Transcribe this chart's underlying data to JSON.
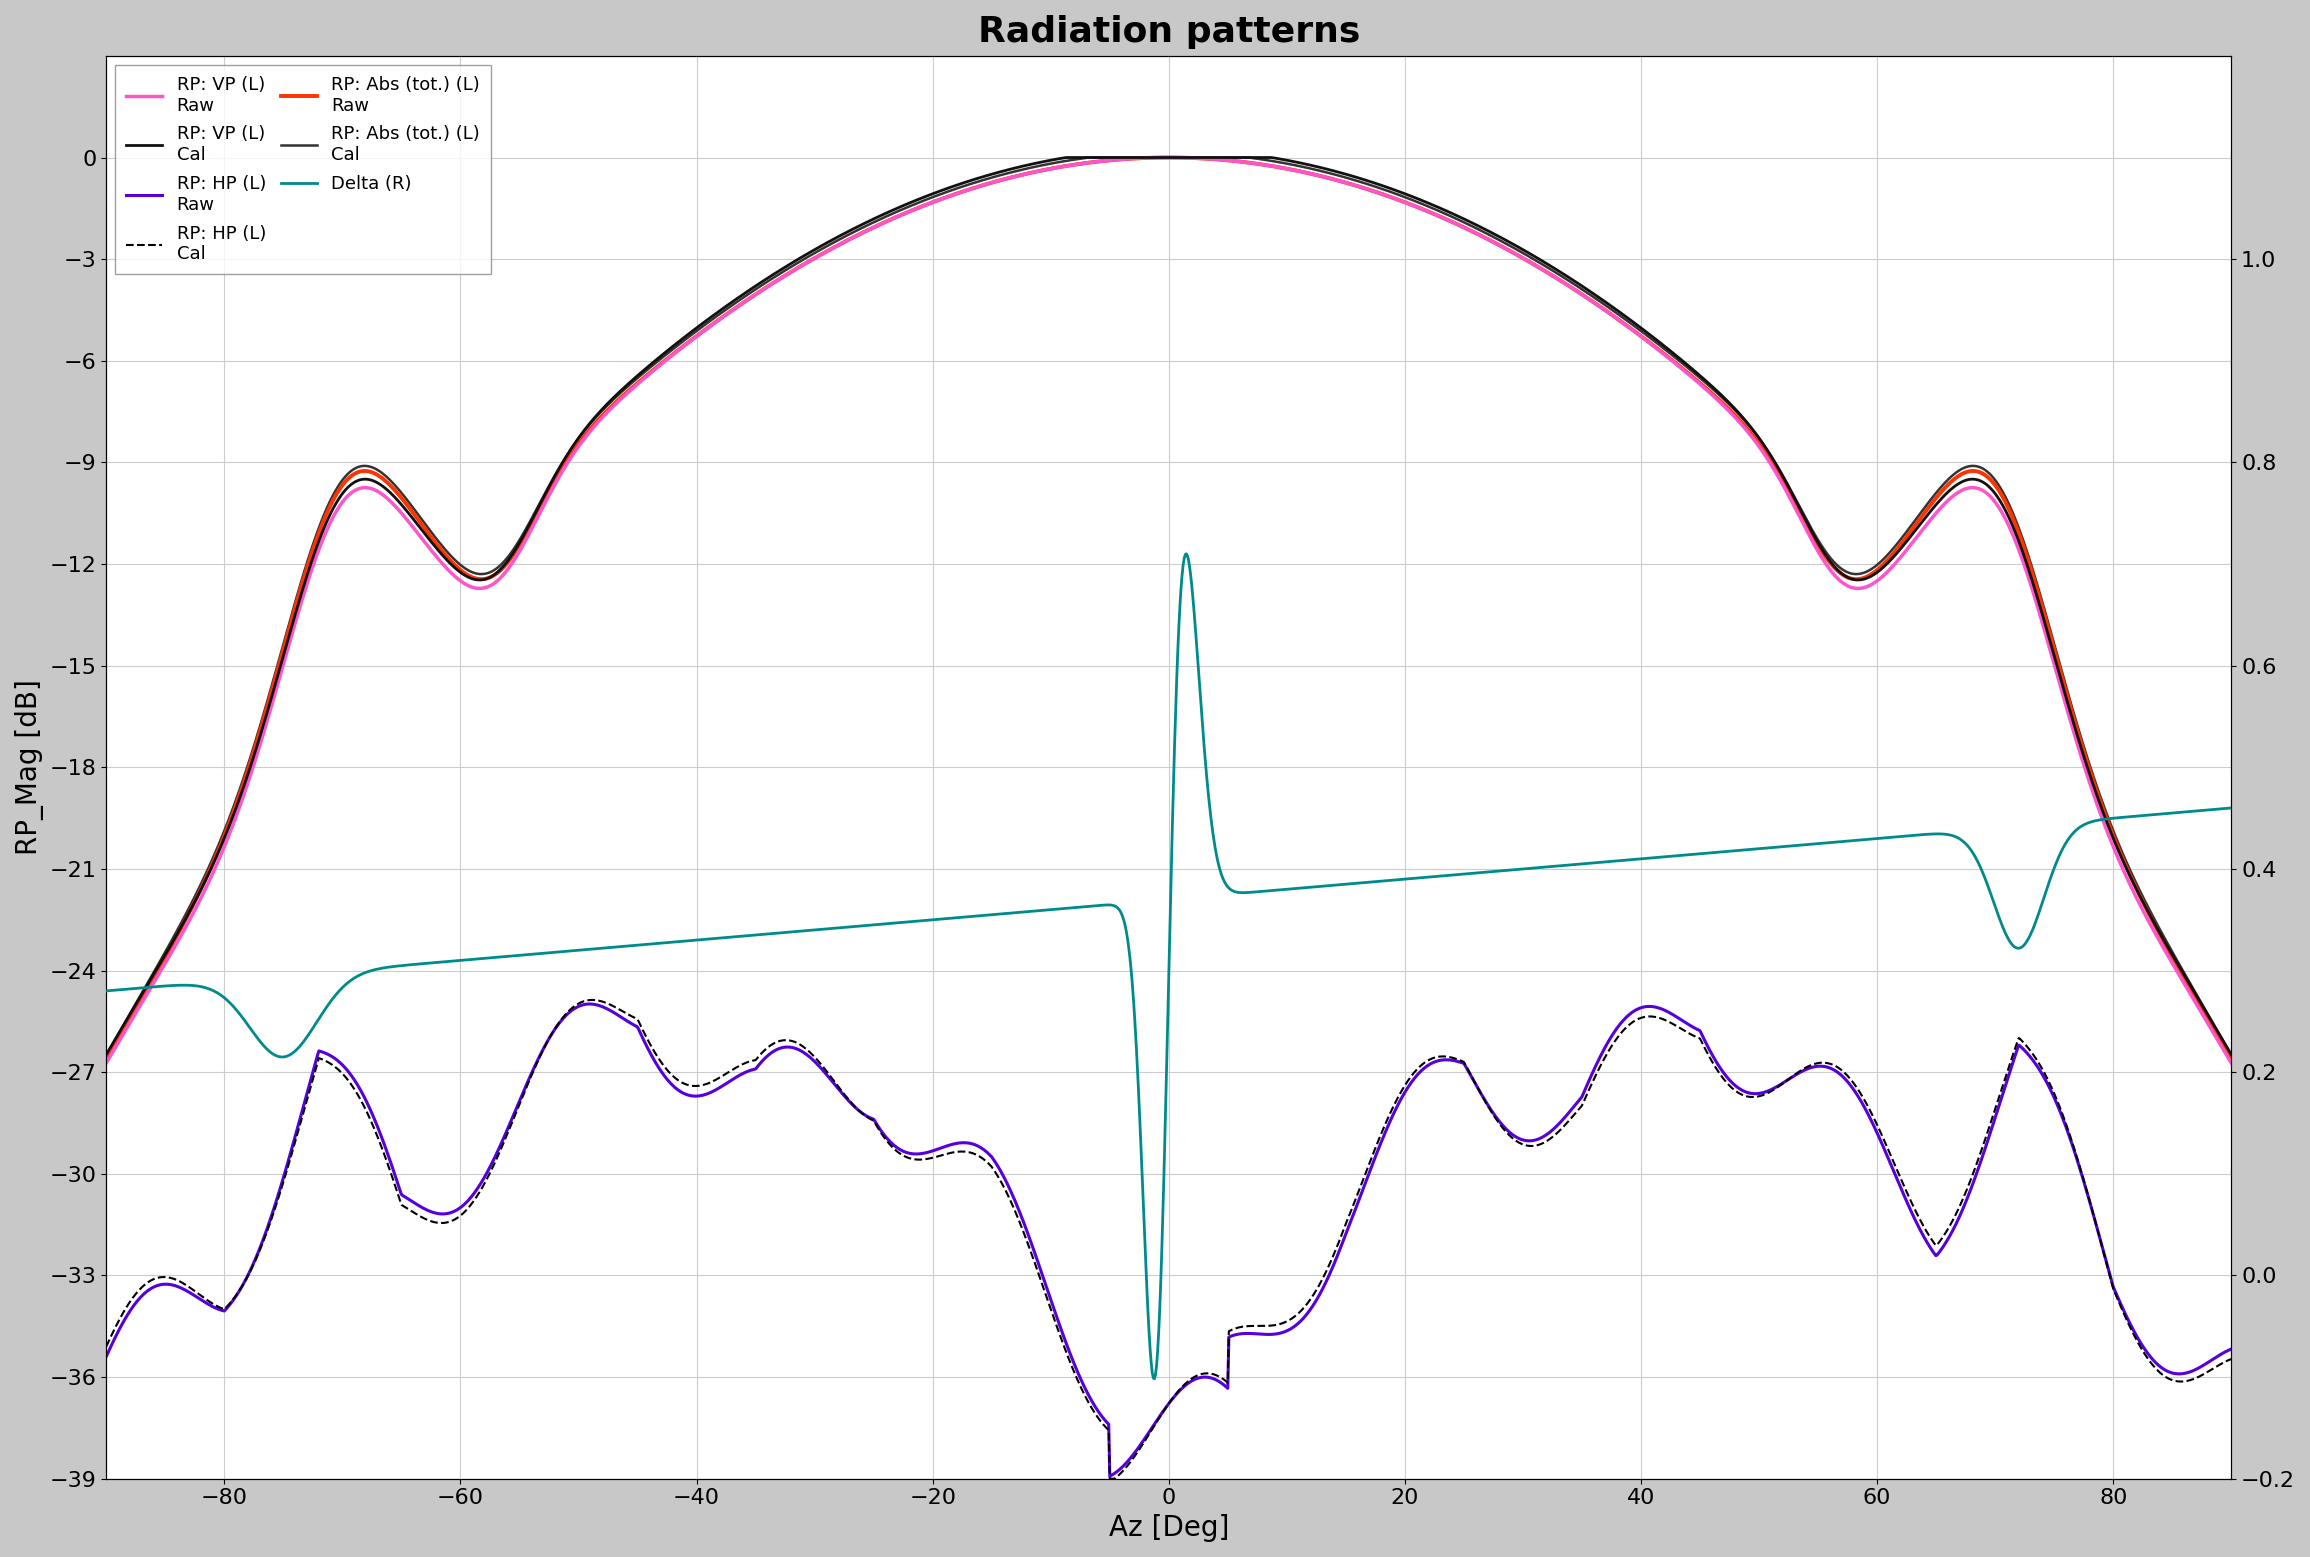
{
  "title": "Radiation patterns",
  "xlabel": "Az [Deg]",
  "ylabel_left": "RP_Mag [dB]",
  "xlim": [
    -90,
    90
  ],
  "ylim_left": [
    -39,
    3
  ],
  "ylim_right": [
    -0.2,
    1.2
  ],
  "yticks_left": [
    0,
    -3,
    -6,
    -9,
    -12,
    -15,
    -18,
    -21,
    -24,
    -27,
    -30,
    -33,
    -36,
    -39
  ],
  "yticks_right": [
    -0.2,
    0.0,
    0.2,
    0.4,
    0.6,
    0.8,
    1.0
  ],
  "xticks": [
    -80,
    -60,
    -40,
    -20,
    0,
    20,
    40,
    60,
    80
  ],
  "colors": {
    "vp_raw": "#ff55cc",
    "hp_raw": "#5500dd",
    "abs_raw": "#ff3300",
    "vp_cal": "#111111",
    "hp_cal": "#000000",
    "abs_cal": "#333333",
    "delta": "#008b8b"
  }
}
